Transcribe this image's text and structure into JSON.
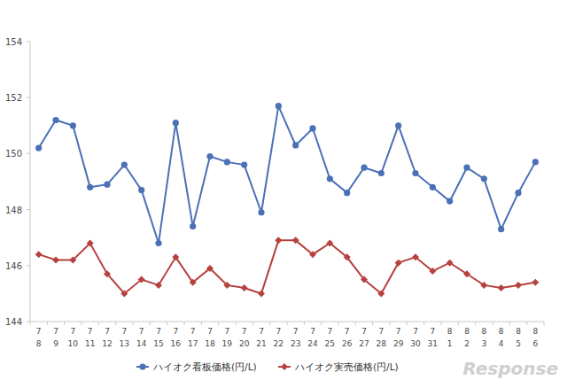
{
  "chart_data": {
    "type": "line",
    "categories": [
      "7\n8",
      "7\n9",
      "7\n10",
      "7\n11",
      "7\n12",
      "7\n13",
      "7\n14",
      "7\n15",
      "7\n16",
      "7\n17",
      "7\n18",
      "7\n19",
      "7\n20",
      "7\n21",
      "7\n22",
      "7\n23",
      "7\n24",
      "7\n25",
      "7\n26",
      "7\n27",
      "7\n28",
      "7\n29",
      "7\n30",
      "7\n31",
      "8\n1",
      "8\n2",
      "8\n3",
      "8\n4",
      "8\n5",
      "8\n6"
    ],
    "series": [
      {
        "name": "ハイオク看板価格(円/L)",
        "color": "#4a70b6",
        "marker": "circle",
        "values": [
          150.2,
          151.2,
          151.0,
          148.8,
          148.9,
          149.6,
          148.7,
          146.8,
          151.1,
          147.4,
          149.9,
          149.7,
          149.6,
          147.9,
          151.7,
          150.3,
          150.9,
          149.1,
          148.6,
          149.5,
          149.3,
          151.0,
          149.3,
          148.8,
          148.3,
          149.5,
          149.1,
          147.3,
          148.6,
          149.7
        ]
      },
      {
        "name": "ハイオク実売価格(円/L)",
        "color": "#b6413e",
        "marker": "diamond",
        "values": [
          146.4,
          146.2,
          146.2,
          146.8,
          145.7,
          145.0,
          145.5,
          145.3,
          146.3,
          145.4,
          145.9,
          145.3,
          145.2,
          145.0,
          146.9,
          146.9,
          146.4,
          146.8,
          146.3,
          145.5,
          145.0,
          146.1,
          146.3,
          145.8,
          146.1,
          145.7,
          145.3,
          145.2,
          145.3,
          145.4
        ]
      }
    ],
    "ylim": [
      144,
      154
    ],
    "yticks": [
      144,
      146,
      148,
      150,
      152,
      154
    ],
    "grid": false,
    "legend": "bottom",
    "source": "Response"
  }
}
